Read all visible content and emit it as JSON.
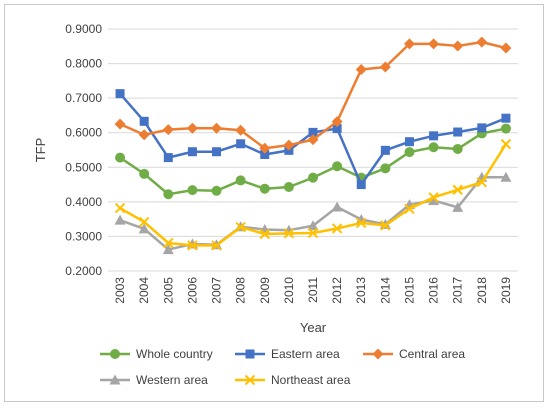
{
  "chart_data": {
    "type": "line",
    "xlabel": "Year",
    "ylabel": "TFP",
    "ylim": [
      0.2,
      0.9
    ],
    "yticks": [
      "0.2000",
      "0.3000",
      "0.4000",
      "0.5000",
      "0.6000",
      "0.7000",
      "0.8000",
      "0.9000"
    ],
    "categories": [
      "2003",
      "2004",
      "2005",
      "2006",
      "2007",
      "2008",
      "2009",
      "2010",
      "2011",
      "2012",
      "2013",
      "2014",
      "2015",
      "2016",
      "2017",
      "2018",
      "2019"
    ],
    "grid": "horizontal",
    "legend_position": "bottom",
    "series": [
      {
        "name": "Whole country",
        "color": "#70ad47",
        "marker": "circle",
        "values": [
          0.528,
          0.481,
          0.422,
          0.434,
          0.432,
          0.462,
          0.438,
          0.443,
          0.47,
          0.503,
          0.47,
          0.497,
          0.544,
          0.558,
          0.553,
          0.598,
          0.612
        ]
      },
      {
        "name": "Eastern area",
        "color": "#4472c4",
        "marker": "square",
        "values": [
          0.713,
          0.633,
          0.528,
          0.545,
          0.545,
          0.568,
          0.537,
          0.549,
          0.601,
          0.612,
          0.45,
          0.549,
          0.574,
          0.591,
          0.602,
          0.614,
          0.642
        ]
      },
      {
        "name": "Central area",
        "color": "#ed7d31",
        "marker": "diamond",
        "values": [
          0.625,
          0.594,
          0.609,
          0.613,
          0.613,
          0.607,
          0.555,
          0.564,
          0.58,
          0.632,
          0.783,
          0.79,
          0.857,
          0.857,
          0.851,
          0.862,
          0.845
        ]
      },
      {
        "name": "Western area",
        "color": "#a5a5a5",
        "marker": "triangle",
        "values": [
          0.347,
          0.322,
          0.262,
          0.278,
          0.276,
          0.328,
          0.32,
          0.318,
          0.331,
          0.385,
          0.349,
          0.335,
          0.392,
          0.404,
          0.384,
          0.471,
          0.471
        ]
      },
      {
        "name": "Northeast area",
        "color": "#ffc000",
        "marker": "x",
        "values": [
          0.382,
          0.342,
          0.281,
          0.274,
          0.274,
          0.327,
          0.307,
          0.309,
          0.31,
          0.323,
          0.339,
          0.332,
          0.38,
          0.413,
          0.435,
          0.457,
          0.567
        ]
      }
    ]
  }
}
